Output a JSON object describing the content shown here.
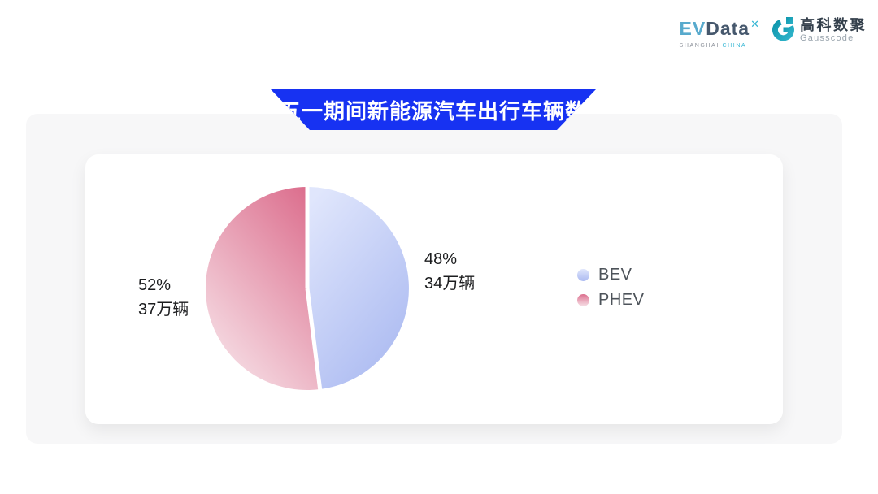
{
  "logos": {
    "evdata": {
      "part1": "EV",
      "part2": "Data",
      "mark": "✕",
      "sub1": "SHANGHAI",
      "sub2": "CHINA",
      "color_part1": "#58aacd",
      "color_part2": "#46586d",
      "color_accent": "#35b6d4"
    },
    "gausscode": {
      "cn": "高科数聚",
      "en": "Gausscode",
      "icon_color": "#1ba3b8",
      "cn_color": "#333f4b",
      "en_color": "#99a4ad"
    }
  },
  "banner": {
    "title": "五一期间新能源汽车出行车辆数",
    "bg_color": "#1732f2",
    "text_color": "#ffffff"
  },
  "chart_data": {
    "type": "pie",
    "title": "五一期间新能源汽车出行车辆数",
    "start_angle": "top",
    "direction": "clockwise",
    "legend_position": "right",
    "unit": "万辆",
    "slices": [
      {
        "name": "BEV",
        "percent": 48,
        "value": 34,
        "unit": "万辆",
        "label_percent": "48%",
        "label_value": "34万辆",
        "color_start": "#e0e6fc",
        "color_end": "#abbaf1"
      },
      {
        "name": "PHEV",
        "percent": 52,
        "value": 37,
        "unit": "万辆",
        "label_percent": "52%",
        "label_value": "37万辆",
        "color_start": "#dc6f8e",
        "color_end": "#f7e2e8"
      }
    ]
  },
  "colors": {
    "panel_bg": "#f7f7f8",
    "card_bg": "#ffffff",
    "label_text": "#1c1d1f",
    "legend_text": "#4d535a",
    "divider": "#ffffff"
  }
}
